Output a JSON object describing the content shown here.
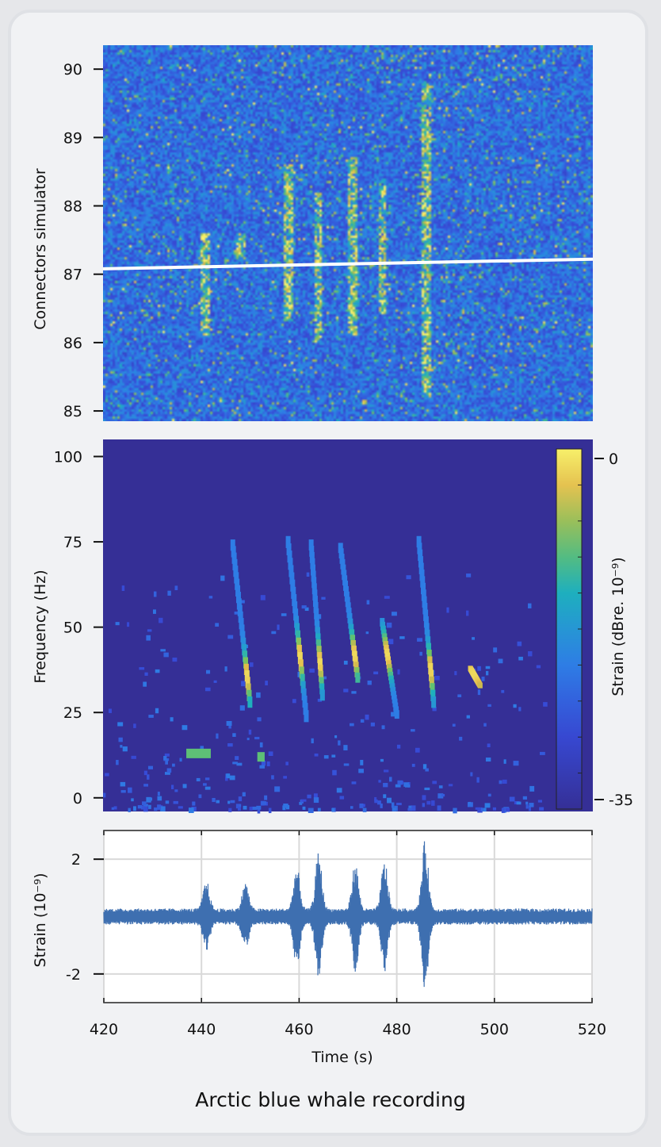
{
  "caption": "Arctic blue whale recording",
  "colors": {
    "card_background": "#f1f2f4",
    "heatmap_low": "#352f96",
    "heatmap_mid": "#3f7fe0",
    "heatmap_high": "#f7f06a",
    "waveform": "#3e6fb0",
    "overlay_line": "#ffffff"
  },
  "chart_data": [
    {
      "type": "heatmap",
      "panel": "top",
      "ylabel": "Connectors simulator",
      "yticks": [
        85,
        86,
        87,
        88,
        89,
        90
      ],
      "ylim": [
        84.85,
        90.35
      ],
      "xlim": [
        420,
        520
      ],
      "overlay_line": {
        "x": [
          420,
          520
        ],
        "y": [
          87.08,
          87.22
        ]
      },
      "call_events": [
        {
          "t": 441,
          "y_range": [
            86.1,
            87.6
          ]
        },
        {
          "t": 448,
          "y_range": [
            87.2,
            87.6
          ]
        },
        {
          "t": 458,
          "y_range": [
            86.3,
            88.6
          ]
        },
        {
          "t": 464,
          "y_range": [
            86.0,
            88.2
          ]
        },
        {
          "t": 471,
          "y_range": [
            86.1,
            88.7
          ]
        },
        {
          "t": 477,
          "y_range": [
            86.4,
            88.4
          ]
        },
        {
          "t": 486,
          "y_range": [
            85.2,
            89.8
          ]
        }
      ]
    },
    {
      "type": "heatmap",
      "panel": "middle",
      "ylabel": "Frequency (Hz)",
      "yticks": [
        0,
        25,
        50,
        75,
        100
      ],
      "ylim": [
        -4,
        105
      ],
      "xlim": [
        420,
        520
      ],
      "colorbar": {
        "label": "Strain (dBre. 10⁻⁹)",
        "ticks": [
          0,
          -35
        ],
        "range": [
          -35,
          0
        ]
      },
      "calls": [
        {
          "t_start": 446.5,
          "t_end": 450,
          "f_start": 75,
          "f_end": 29,
          "peak_freq": 36
        },
        {
          "t_start": 457.8,
          "t_end": 461.5,
          "f_start": 76,
          "f_end": 25,
          "peak_freq": 42
        },
        {
          "t_start": 462.5,
          "t_end": 464.8,
          "f_start": 75,
          "f_end": 31,
          "peak_freq": 40
        },
        {
          "t_start": 468.5,
          "t_end": 472,
          "f_start": 74,
          "f_end": 36,
          "peak_freq": 42
        },
        {
          "t_start": 477,
          "t_end": 480,
          "f_start": 52,
          "f_end": 25,
          "peak_freq": 42
        },
        {
          "t_start": 484.5,
          "t_end": 487.5,
          "f_start": 76,
          "f_end": 29,
          "peak_freq": 38
        },
        {
          "t_start": 495,
          "t_end": 497,
          "f_start": 38,
          "f_end": 33,
          "peak_freq": 36
        }
      ],
      "low_frequency_patches": [
        {
          "t_start": 437,
          "t_end": 442,
          "freq": 13
        },
        {
          "t_start": 451.5,
          "t_end": 453,
          "freq": 12
        }
      ]
    },
    {
      "type": "line",
      "panel": "bottom",
      "ylabel": "Strain (10⁻⁹)",
      "xlabel": "Time (s)",
      "xticks": [
        420,
        440,
        460,
        480,
        500,
        520
      ],
      "yticks": [
        2,
        -2
      ],
      "ytick_labels": [
        "2",
        "-2"
      ],
      "xlim": [
        420,
        520
      ],
      "ylim": [
        -3,
        3
      ],
      "grid": true,
      "noise_amplitude": 0.28,
      "bursts": [
        {
          "t": 441,
          "amplitude": 1.0
        },
        {
          "t": 449,
          "amplitude": 0.95
        },
        {
          "t": 459.5,
          "amplitude": 1.5
        },
        {
          "t": 464,
          "amplitude": 2.0
        },
        {
          "t": 471.5,
          "amplitude": 1.65
        },
        {
          "t": 477.5,
          "amplitude": 1.75
        },
        {
          "t": 485.8,
          "amplitude": 2.4
        }
      ]
    }
  ]
}
